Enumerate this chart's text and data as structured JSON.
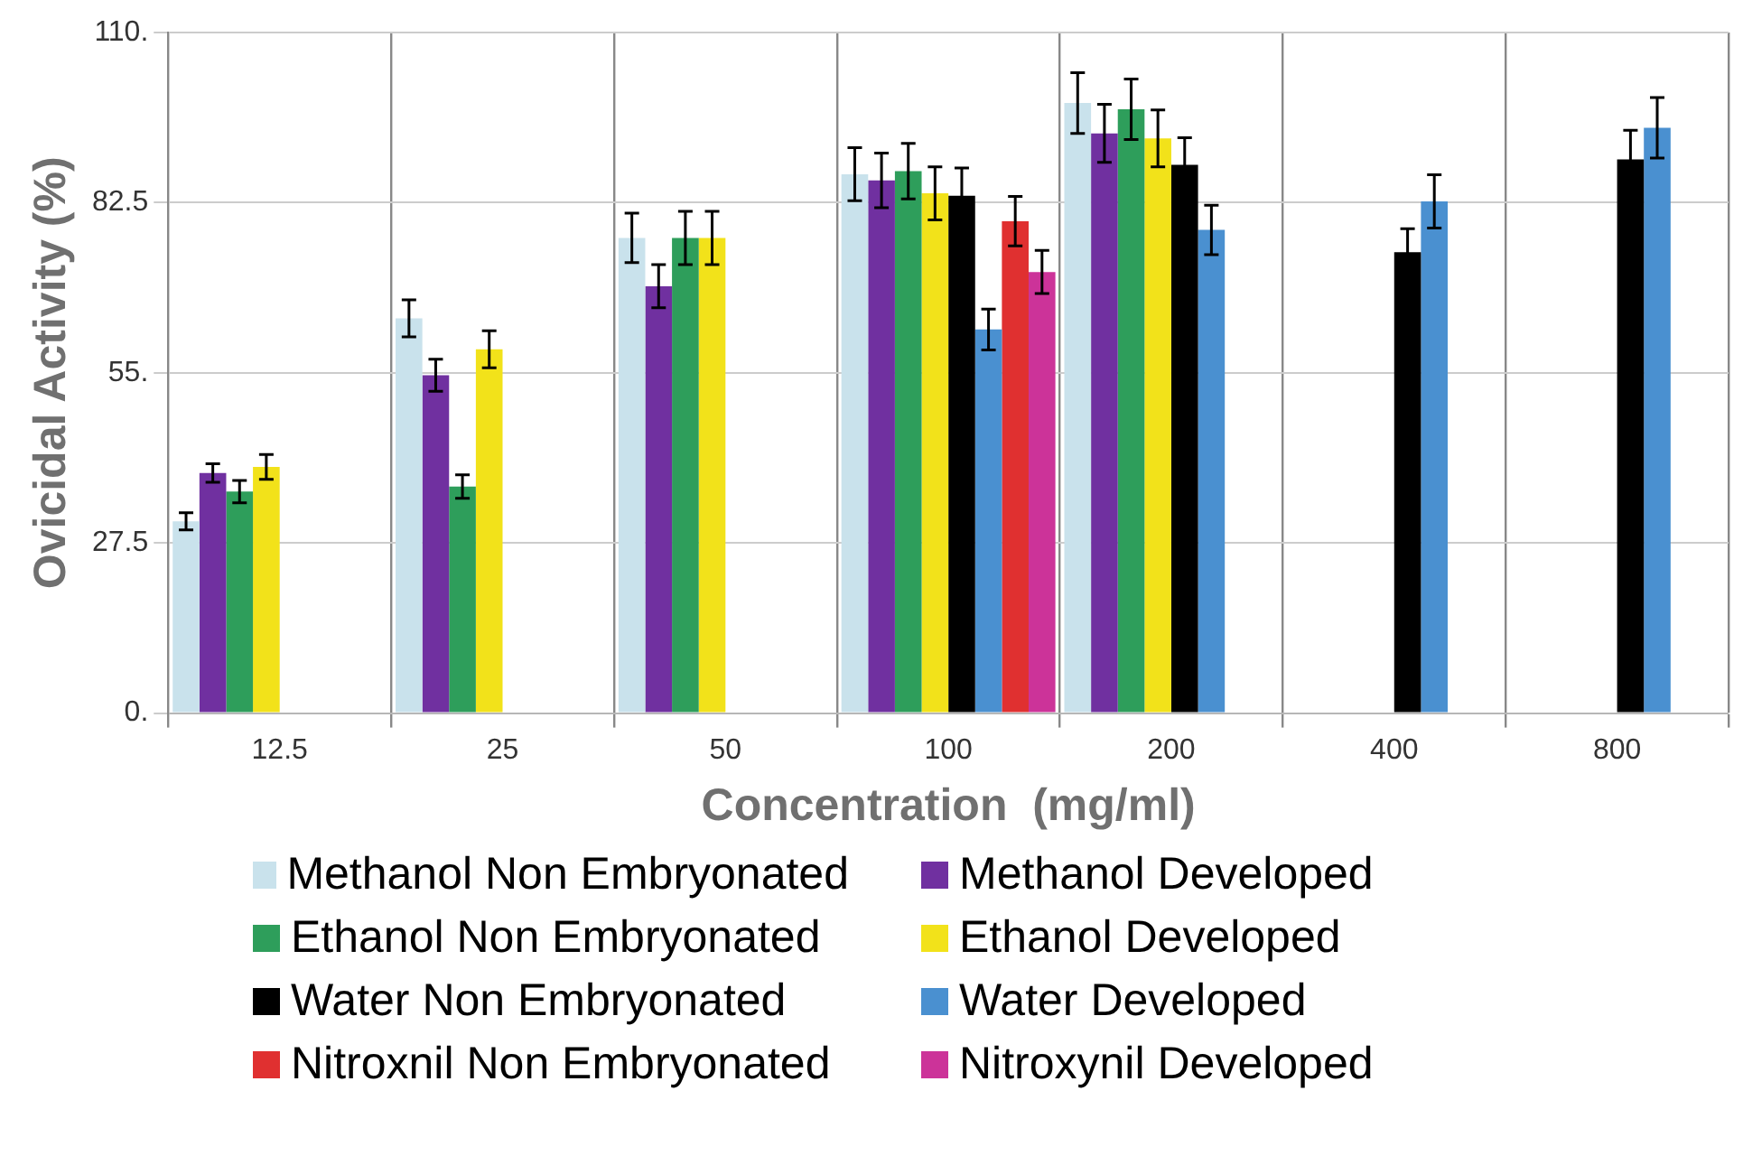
{
  "chart_data": {
    "type": "bar",
    "xlabel": "Concentration  (mg/ml)",
    "ylabel": "Ovicidal Activity (%)",
    "categories": [
      "12.5",
      "25",
      "50",
      "100",
      "200",
      "400",
      "800"
    ],
    "ylim": [
      0,
      110
    ],
    "yticks": [
      {
        "value": 0,
        "label": "0."
      },
      27.5,
      {
        "value": 55,
        "label": "55."
      },
      82.5,
      {
        "value": 110,
        "label": "110."
      }
    ],
    "grid": true,
    "legend": "bottom",
    "series": [
      {
        "name": "Methanol Non Embryonated",
        "color": "#c9e2ec",
        "values": [
          31.0,
          63.8,
          76.8,
          87.1,
          98.6,
          null,
          null
        ],
        "errors": [
          1.4,
          3,
          4,
          4.3,
          4.9,
          null,
          null
        ]
      },
      {
        "name": "Methanol Developed",
        "color": "#7030a0",
        "values": [
          38.8,
          54.6,
          69.0,
          86.1,
          93.7,
          null,
          null
        ],
        "errors": [
          1.5,
          2.6,
          3.5,
          4.4,
          4.7,
          null,
          null
        ]
      },
      {
        "name": "Ethanol Non Embryonated",
        "color": "#2e9e5b",
        "values": [
          35.8,
          36.6,
          76.8,
          87.6,
          97.6,
          null,
          null
        ],
        "errors": [
          1.8,
          1.9,
          4.3,
          4.5,
          4.9,
          null,
          null
        ]
      },
      {
        "name": "Ethanol Developed",
        "color": "#f2e21a",
        "values": [
          39.8,
          58.8,
          76.8,
          84.0,
          92.9,
          null,
          null
        ],
        "errors": [
          2,
          3,
          4.3,
          4.3,
          4.6,
          null,
          null
        ]
      },
      {
        "name": "Water Non Embryonated",
        "color": "#000000",
        "values": [
          null,
          null,
          null,
          83.6,
          88.6,
          74.5,
          89.5
        ],
        "errors": [
          null,
          null,
          null,
          4.5,
          4.4,
          3.8,
          4.7
        ]
      },
      {
        "name": "Water Developed",
        "color": "#4a90d0",
        "values": [
          null,
          null,
          null,
          62.0,
          78.1,
          82.7,
          94.6
        ],
        "errors": [
          null,
          null,
          null,
          3.3,
          4,
          4.3,
          4.9
        ]
      },
      {
        "name": "Nitroxnil Non Embryonated",
        "color": "#e03030",
        "values": [
          null,
          null,
          null,
          79.5,
          null,
          null,
          null
        ],
        "errors": [
          null,
          null,
          null,
          4,
          null,
          null,
          null
        ]
      },
      {
        "name": "Nitroxynil Developed",
        "color": "#cc3399",
        "values": [
          null,
          null,
          null,
          71.3,
          null,
          null,
          null
        ],
        "errors": [
          null,
          null,
          null,
          3.5,
          null,
          null,
          null
        ]
      }
    ]
  }
}
